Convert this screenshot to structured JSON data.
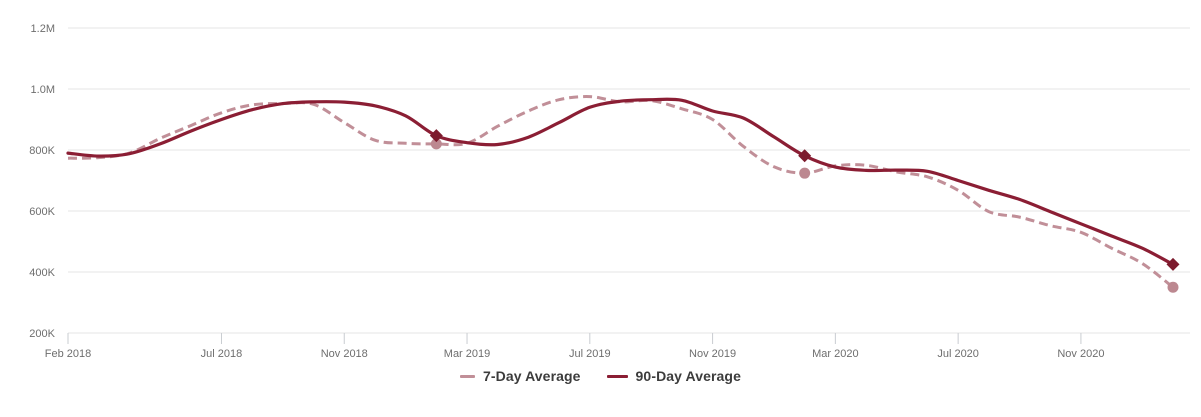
{
  "chart_data": {
    "type": "line",
    "title": "",
    "unit_note": "values are in thousands (K); y-axis labels shown as 200K..1.2M",
    "y_axis": {
      "tick_labels": [
        "1.2M",
        "1.0M",
        "800K",
        "600K",
        "400K",
        "200K"
      ],
      "tick_values_k": [
        1200,
        1000,
        800,
        600,
        400,
        200
      ],
      "ylim_k": [
        200,
        1200
      ],
      "grid": true
    },
    "x_axis": {
      "tick_labels": [
        "Feb 2018",
        "Jul 2018",
        "Nov 2018",
        "Mar 2019",
        "Jul 2019",
        "Nov 2019",
        "Mar 2020",
        "Jul 2020",
        "Nov 2020"
      ],
      "tick_months": [
        0,
        5,
        9,
        13,
        17,
        21,
        25,
        29,
        33
      ],
      "domain_months": [
        0,
        36
      ],
      "start_label": "Feb 2018"
    },
    "x_months": [
      0,
      1,
      2,
      3,
      4,
      5,
      6,
      7,
      8,
      9,
      10,
      11,
      12,
      13,
      14,
      15,
      16,
      17,
      18,
      19,
      20,
      21,
      22,
      23,
      24,
      25,
      26,
      27,
      28,
      29,
      30,
      31,
      32,
      33,
      34,
      35,
      36
    ],
    "series": [
      {
        "name": "7-Day Average",
        "style": "dashed",
        "color": "#c18f98",
        "marker": "circle",
        "marker_color": "#bc8890",
        "marker_month_indices": [
          12,
          24,
          36
        ],
        "values_k": [
          773,
          775,
          790,
          838,
          880,
          922,
          948,
          952,
          950,
          890,
          832,
          822,
          820,
          822,
          878,
          928,
          965,
          975,
          958,
          962,
          935,
          900,
          812,
          745,
          724,
          748,
          750,
          728,
          712,
          668,
          598,
          580,
          552,
          530,
          478,
          428,
          350
        ]
      },
      {
        "name": "90-Day Average",
        "style": "solid",
        "color": "#8b1e34",
        "marker": "diamond",
        "marker_color": "#7c1b2d",
        "marker_month_indices": [
          12,
          24,
          36
        ],
        "values_k": [
          790,
          780,
          788,
          820,
          862,
          900,
          932,
          952,
          958,
          957,
          945,
          912,
          847,
          824,
          818,
          842,
          890,
          940,
          960,
          965,
          963,
          928,
          905,
          843,
          781,
          744,
          733,
          734,
          730,
          700,
          668,
          638,
          598,
          558,
          518,
          478,
          425
        ]
      }
    ],
    "legend": {
      "position": "bottom-center",
      "items": [
        "7-Day Average",
        "90-Day Average"
      ]
    }
  },
  "colors": {
    "background": "#ffffff",
    "gridline": "#e4e4e4",
    "axis_tick": "#c9ccd1",
    "axis_label_text": "#6e6e6e",
    "legend_text": "#3c3c3c"
  }
}
